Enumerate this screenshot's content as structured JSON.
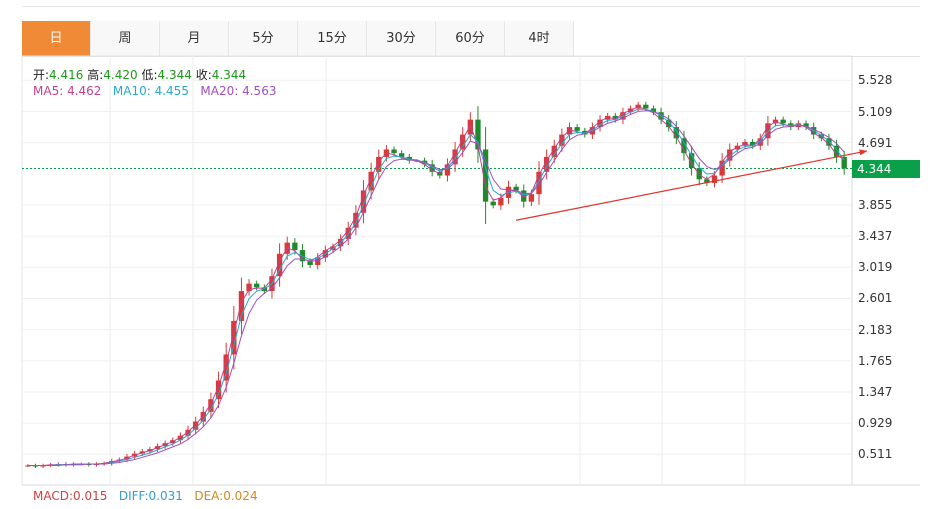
{
  "tabs": [
    {
      "label": "日",
      "active": true
    },
    {
      "label": "周",
      "active": false
    },
    {
      "label": "月",
      "active": false
    },
    {
      "label": "5分",
      "active": false
    },
    {
      "label": "15分",
      "active": false
    },
    {
      "label": "30分",
      "active": false
    },
    {
      "label": "60分",
      "active": false
    },
    {
      "label": "4时",
      "active": false
    }
  ],
  "ohlc": {
    "open_label": "开:",
    "open": "4.416",
    "high_label": "高:",
    "high": "4.420",
    "low_label": "低:",
    "low": "4.344",
    "close_label": "收:",
    "close": "4.344"
  },
  "ma": {
    "ma5_label": "MA5:",
    "ma5": "4.462",
    "ma10_label": "MA10:",
    "ma10": "4.455",
    "ma20_label": "MA20:",
    "ma20": "4.563"
  },
  "macd": {
    "macd_label": "MACD:",
    "macd": "0.015",
    "diff_label": "DIFF:",
    "diff": "0.031",
    "dea_label": "DEA:",
    "dea": "0.024"
  },
  "current_price": "4.344",
  "colors": {
    "up": "#d63a3a",
    "down": "#1f8a2a",
    "ma5": "#c2418f",
    "ma10": "#2aa9c8",
    "ma20": "#a050c0",
    "trendline": "#e0352b",
    "price_tag": "#0aa04a",
    "active_tab": "#f08a37"
  },
  "chart_data": {
    "type": "line",
    "title": "",
    "xlabel": "",
    "ylabel": "",
    "ylim": [
      0.3,
      5.8
    ],
    "y_ticks": [
      "5.528",
      "5.109",
      "4.691",
      "4.344",
      "3.855",
      "3.437",
      "3.019",
      "2.601",
      "2.183",
      "1.765",
      "1.347",
      "0.929",
      "0.511"
    ],
    "current_price_line": 4.344,
    "close_path": [
      0.36,
      0.35,
      0.36,
      0.37,
      0.38,
      0.37,
      0.38,
      0.38,
      0.37,
      0.38,
      0.39,
      0.42,
      0.44,
      0.48,
      0.52,
      0.55,
      0.58,
      0.62,
      0.66,
      0.7,
      0.76,
      0.84,
      0.95,
      1.08,
      1.25,
      1.5,
      1.85,
      2.3,
      2.7,
      2.8,
      2.75,
      2.7,
      2.9,
      3.2,
      3.35,
      3.25,
      3.1,
      3.05,
      3.15,
      3.25,
      3.3,
      3.4,
      3.55,
      3.75,
      4.05,
      4.3,
      4.5,
      4.6,
      4.55,
      4.5,
      4.45,
      4.45,
      4.4,
      4.3,
      4.25,
      4.4,
      4.6,
      4.8,
      5.0,
      4.6,
      3.9,
      3.85,
      3.95,
      4.1,
      4.05,
      3.9,
      4.0,
      4.3,
      4.5,
      4.65,
      4.8,
      4.9,
      4.85,
      4.8,
      4.9,
      5.0,
      5.05,
      5.0,
      5.1,
      5.15,
      5.2,
      5.15,
      5.1,
      5.0,
      4.9,
      4.75,
      4.55,
      4.35,
      4.2,
      4.15,
      4.25,
      4.45,
      4.6,
      4.65,
      4.7,
      4.65,
      4.75,
      4.95,
      5.0,
      4.95,
      4.9,
      4.95,
      4.9,
      4.8,
      4.75,
      4.65,
      4.5,
      4.344
    ],
    "series": [
      {
        "name": "MA5",
        "values": [
          0.36,
          0.36,
          0.36,
          0.37,
          0.37,
          0.37,
          0.38,
          0.38,
          0.38,
          0.38,
          0.39,
          0.41,
          0.43,
          0.46,
          0.5,
          0.53,
          0.56,
          0.6,
          0.64,
          0.68,
          0.74,
          0.81,
          0.91,
          1.03,
          1.19,
          1.42,
          1.74,
          2.14,
          2.55,
          2.72,
          2.74,
          2.74,
          2.86,
          3.1,
          3.28,
          3.24,
          3.13,
          3.1,
          3.16,
          3.24,
          3.3,
          3.39,
          3.52,
          3.7,
          3.98,
          4.22,
          4.44,
          4.55,
          4.53,
          4.49,
          4.46,
          4.45,
          4.4,
          4.32,
          4.28,
          4.38,
          4.55,
          4.74,
          4.92,
          4.65,
          4.1,
          3.92,
          3.95,
          4.05,
          4.05,
          3.96,
          4.02,
          4.26,
          4.45,
          4.61,
          4.76,
          4.86,
          4.84,
          4.81,
          4.89,
          4.98,
          5.03,
          5.01,
          5.08,
          5.13,
          5.17,
          5.14,
          5.09,
          5.0,
          4.91,
          4.77,
          4.59,
          4.41,
          4.26,
          4.2,
          4.27,
          4.43,
          4.57,
          4.63,
          4.67,
          4.65,
          4.74,
          4.91,
          4.97,
          4.94,
          4.91,
          4.94,
          4.9,
          4.82,
          4.76,
          4.67,
          4.53,
          4.462
        ]
      },
      {
        "name": "MA10",
        "values": [
          0.36,
          0.36,
          0.36,
          0.36,
          0.37,
          0.37,
          0.37,
          0.38,
          0.38,
          0.38,
          0.38,
          0.4,
          0.42,
          0.44,
          0.47,
          0.5,
          0.53,
          0.57,
          0.61,
          0.65,
          0.7,
          0.77,
          0.86,
          0.97,
          1.12,
          1.32,
          1.6,
          1.97,
          2.37,
          2.6,
          2.7,
          2.73,
          2.8,
          2.99,
          3.17,
          3.22,
          3.17,
          3.12,
          3.14,
          3.2,
          3.27,
          3.35,
          3.46,
          3.62,
          3.86,
          4.1,
          4.33,
          4.48,
          4.51,
          4.5,
          4.47,
          4.46,
          4.42,
          4.36,
          4.31,
          4.35,
          4.48,
          4.64,
          4.8,
          4.7,
          4.35,
          4.05,
          3.98,
          4.02,
          4.04,
          3.99,
          4.01,
          4.18,
          4.37,
          4.53,
          4.68,
          4.8,
          4.83,
          4.82,
          4.86,
          4.93,
          4.99,
          5.0,
          5.05,
          5.1,
          5.14,
          5.14,
          5.11,
          5.05,
          4.97,
          4.85,
          4.69,
          4.52,
          4.36,
          4.27,
          4.28,
          4.39,
          4.51,
          4.59,
          4.64,
          4.65,
          4.71,
          4.84,
          4.92,
          4.93,
          4.92,
          4.93,
          4.91,
          4.85,
          4.79,
          4.71,
          4.6,
          4.455
        ]
      },
      {
        "name": "MA20",
        "values": [
          0.36,
          0.36,
          0.36,
          0.36,
          0.36,
          0.37,
          0.37,
          0.37,
          0.38,
          0.38,
          0.38,
          0.39,
          0.4,
          0.42,
          0.44,
          0.47,
          0.5,
          0.53,
          0.57,
          0.61,
          0.65,
          0.71,
          0.79,
          0.88,
          1.0,
          1.17,
          1.41,
          1.73,
          2.1,
          2.4,
          2.58,
          2.67,
          2.74,
          2.88,
          3.04,
          3.13,
          3.13,
          3.1,
          3.11,
          3.16,
          3.22,
          3.3,
          3.4,
          3.55,
          3.76,
          3.98,
          4.2,
          4.37,
          4.45,
          4.47,
          4.46,
          4.45,
          4.43,
          4.38,
          4.33,
          4.34,
          4.43,
          4.56,
          4.71,
          4.68,
          4.45,
          4.2,
          4.07,
          4.06,
          4.05,
          4.01,
          4.01,
          4.13,
          4.29,
          4.45,
          4.6,
          4.73,
          4.79,
          4.81,
          4.84,
          4.9,
          4.95,
          4.98,
          5.02,
          5.07,
          5.11,
          5.12,
          5.11,
          5.07,
          5.01,
          4.91,
          4.78,
          4.63,
          4.48,
          4.37,
          4.33,
          4.38,
          4.47,
          4.55,
          4.61,
          4.63,
          4.68,
          4.79,
          4.87,
          4.9,
          4.91,
          4.92,
          4.91,
          4.87,
          4.82,
          4.76,
          4.68,
          4.563
        ]
      }
    ],
    "trendline": {
      "from_index": 64,
      "from_value": 3.65,
      "to_index": 110,
      "to_value": 4.58
    }
  }
}
